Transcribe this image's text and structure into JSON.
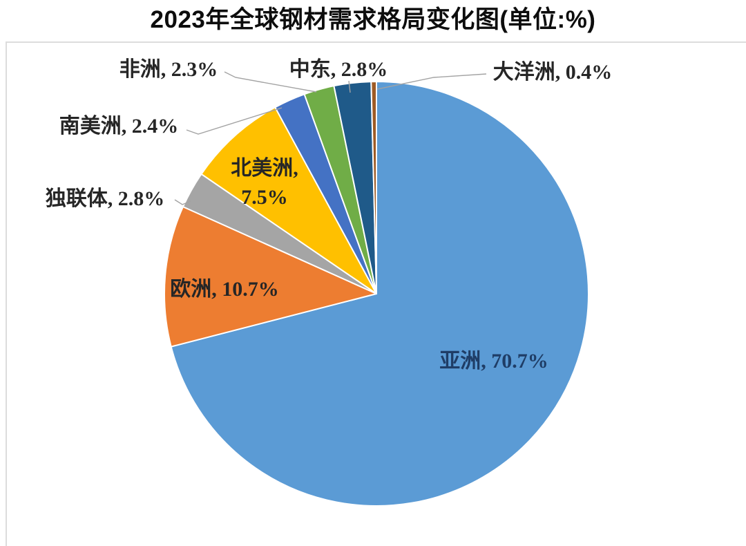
{
  "title": "2023年全球钢材需求格局变化图(单位:%)",
  "chart_data": {
    "type": "pie",
    "title": "2023年全球钢材需求格局变化图(单位:%)",
    "unit": "%",
    "start_angle_deg": 0,
    "direction": "clockwise",
    "legend": "none",
    "slices": [
      {
        "id": "asia",
        "name": "亚洲",
        "value": 70.7,
        "color": "#5B9BD5",
        "label": "亚洲, 70.7%",
        "label_position": "inside"
      },
      {
        "id": "europe",
        "name": "欧洲",
        "value": 10.7,
        "color": "#ED7D31",
        "label": "欧洲, 10.7%",
        "label_position": "inside"
      },
      {
        "id": "cis",
        "name": "独联体",
        "value": 2.8,
        "color": "#A5A5A5",
        "label": "独联体, 2.8%",
        "label_position": "outside"
      },
      {
        "id": "north-america",
        "name": "北美洲",
        "value": 7.5,
        "color": "#FFC000",
        "label": "北美洲, 7.5%",
        "label_lines": [
          "北美洲,",
          "7.5%"
        ],
        "label_position": "inside"
      },
      {
        "id": "south-america",
        "name": "南美洲",
        "value": 2.4,
        "color": "#4472C4",
        "label": "南美洲, 2.4%",
        "label_position": "outside"
      },
      {
        "id": "africa",
        "name": "非洲",
        "value": 2.3,
        "color": "#70AD47",
        "label": "非洲, 2.3%",
        "label_position": "outside"
      },
      {
        "id": "middle-east",
        "name": "中东",
        "value": 2.8,
        "color": "#1F5A89",
        "label": "中东, 2.8%",
        "label_position": "outside"
      },
      {
        "id": "oceania",
        "name": "大洋洲",
        "value": 0.4,
        "color": "#9E5B25",
        "label": "大洋洲, 0.4%",
        "label_position": "outside"
      }
    ]
  }
}
